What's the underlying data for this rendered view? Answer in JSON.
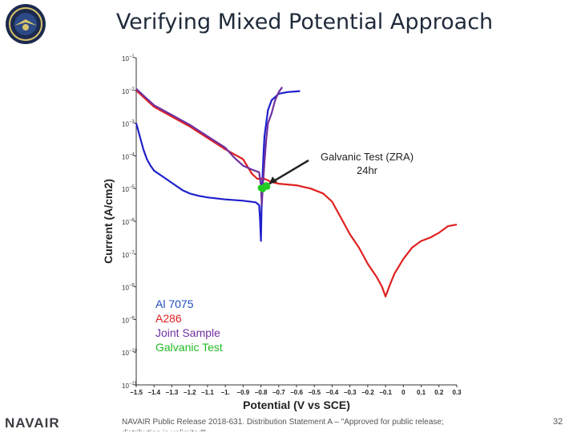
{
  "slide": {
    "title": "Verifying Mixed Potential Approach",
    "brand": "NAVAIR",
    "footer": "NAVAIR Public Release 2018-631. Distribution Statement A – \"Approved for public release; distribution is unlimited\"",
    "page_number": "32"
  },
  "chart_data": {
    "type": "line",
    "title": "",
    "xlabel": "Potential (V vs SCE)",
    "ylabel": "Current (A/cm2)",
    "x_ticks": [
      -1.5,
      -1.4,
      -1.3,
      -1.2,
      -1.1,
      -1.0,
      -0.9,
      -0.8,
      -0.7,
      -0.6,
      -0.5,
      -0.4,
      -0.3,
      -0.2,
      -0.1,
      0,
      0.1,
      0.2,
      0.3
    ],
    "x_tick_labels": [
      "−1.5",
      "−1.4",
      "−1.3",
      "−1.2",
      "−1.1",
      "−1.",
      "−0.9",
      "−0.8",
      "−0.7",
      "−0.6",
      "−0.5",
      "−0.4",
      "−0.3",
      "−0.2",
      "−0.1",
      "0",
      "0.1",
      "0.2",
      "0.3"
    ],
    "y_exponents": [
      -1,
      -2,
      -3,
      -4,
      -5,
      -6,
      -7,
      -8,
      -9,
      -10,
      -11
    ],
    "xlim": [
      -1.5,
      0.3
    ],
    "ylim_log10": [
      -11,
      -1
    ],
    "yscale": "log",
    "grid": false,
    "legend": {
      "placement": "lower-left",
      "entries": [
        {
          "label": "Al 7075",
          "color": "#1f4fbf"
        },
        {
          "label": "A286",
          "color": "#e02020"
        },
        {
          "label": "Joint Sample",
          "color": "#7030a0"
        },
        {
          "label": "Galvanic Test",
          "color": "#22bb22"
        }
      ]
    },
    "annotation": {
      "lines": [
        "Galvanic Test (ZRA)",
        "24hr"
      ],
      "points_to": {
        "x": -0.78,
        "y": -4.95
      }
    },
    "series": [
      {
        "name": "Al 7075",
        "color": "#1f1fcc",
        "points": [
          [
            -1.5,
            -3.0
          ],
          [
            -1.48,
            -3.4
          ],
          [
            -1.46,
            -3.8
          ],
          [
            -1.44,
            -4.1
          ],
          [
            -1.42,
            -4.3
          ],
          [
            -1.4,
            -4.45
          ],
          [
            -1.36,
            -4.6
          ],
          [
            -1.32,
            -4.75
          ],
          [
            -1.28,
            -4.9
          ],
          [
            -1.24,
            -5.05
          ],
          [
            -1.2,
            -5.15
          ],
          [
            -1.15,
            -5.22
          ],
          [
            -1.1,
            -5.27
          ],
          [
            -1.0,
            -5.33
          ],
          [
            -0.9,
            -5.37
          ],
          [
            -0.83,
            -5.42
          ],
          [
            -0.81,
            -5.5
          ],
          [
            -0.805,
            -5.9
          ],
          [
            -0.8,
            -6.6
          ],
          [
            -0.795,
            -5.2
          ],
          [
            -0.79,
            -4.5
          ],
          [
            -0.785,
            -3.9
          ],
          [
            -0.78,
            -3.4
          ],
          [
            -0.77,
            -3.0
          ],
          [
            -0.76,
            -2.6
          ],
          [
            -0.74,
            -2.3
          ],
          [
            -0.7,
            -2.1
          ],
          [
            -0.65,
            -2.05
          ],
          [
            -0.58,
            -2.02
          ]
        ]
      },
      {
        "name": "A286",
        "color": "#e02020",
        "points": [
          [
            -1.5,
            -2.0
          ],
          [
            -1.45,
            -2.25
          ],
          [
            -1.4,
            -2.5
          ],
          [
            -1.3,
            -2.8
          ],
          [
            -1.2,
            -3.1
          ],
          [
            -1.1,
            -3.45
          ],
          [
            -1.0,
            -3.8
          ],
          [
            -0.9,
            -4.1
          ],
          [
            -0.85,
            -4.55
          ],
          [
            -0.82,
            -4.7
          ],
          [
            -0.78,
            -4.7
          ],
          [
            -0.74,
            -4.8
          ],
          [
            -0.7,
            -4.85
          ],
          [
            -0.6,
            -4.9
          ],
          [
            -0.52,
            -5.0
          ],
          [
            -0.45,
            -5.15
          ],
          [
            -0.4,
            -5.4
          ],
          [
            -0.35,
            -5.9
          ],
          [
            -0.3,
            -6.4
          ],
          [
            -0.25,
            -6.8
          ],
          [
            -0.2,
            -7.3
          ],
          [
            -0.15,
            -7.7
          ],
          [
            -0.12,
            -8.0
          ],
          [
            -0.1,
            -8.3
          ],
          [
            -0.08,
            -8.0
          ],
          [
            -0.05,
            -7.6
          ],
          [
            0,
            -7.15
          ],
          [
            0.05,
            -6.8
          ],
          [
            0.1,
            -6.6
          ],
          [
            0.15,
            -6.5
          ],
          [
            0.2,
            -6.35
          ],
          [
            0.25,
            -6.15
          ],
          [
            0.3,
            -6.1
          ]
        ]
      },
      {
        "name": "Joint Sample",
        "color": "#7030a0",
        "points": [
          [
            -1.5,
            -1.95
          ],
          [
            -1.45,
            -2.2
          ],
          [
            -1.4,
            -2.45
          ],
          [
            -1.3,
            -2.75
          ],
          [
            -1.2,
            -3.05
          ],
          [
            -1.1,
            -3.4
          ],
          [
            -1.0,
            -3.75
          ],
          [
            -0.95,
            -4.05
          ],
          [
            -0.9,
            -4.3
          ],
          [
            -0.85,
            -4.42
          ],
          [
            -0.81,
            -4.5
          ],
          [
            -0.8,
            -4.9
          ],
          [
            -0.795,
            -5.5
          ],
          [
            -0.79,
            -5.0
          ],
          [
            -0.78,
            -4.2
          ],
          [
            -0.77,
            -3.5
          ],
          [
            -0.76,
            -3.0
          ],
          [
            -0.74,
            -2.7
          ],
          [
            -0.72,
            -2.3
          ],
          [
            -0.7,
            -2.05
          ],
          [
            -0.68,
            -1.9
          ]
        ]
      }
    ],
    "galvanic_test_points": [
      [
        -0.8,
        -4.98
      ],
      [
        -0.79,
        -5.02
      ],
      [
        -0.78,
        -4.95
      ],
      [
        -0.77,
        -4.9
      ],
      [
        -0.765,
        -4.94
      ]
    ]
  }
}
